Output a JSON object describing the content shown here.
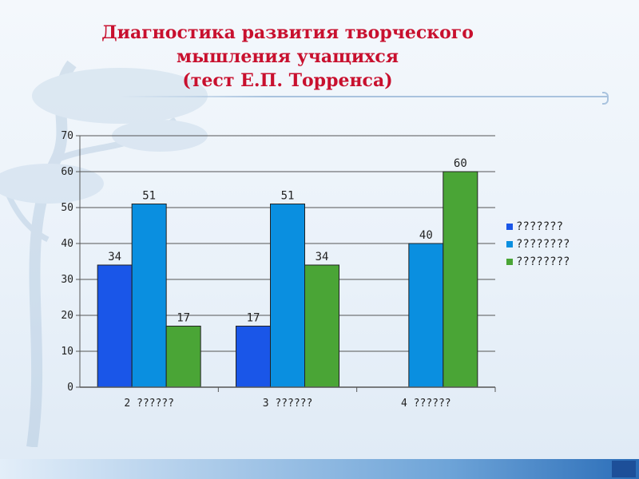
{
  "title": {
    "line1": "Диагностика развития творческого",
    "line2": "мышления учащихся",
    "line3": "(тест Е.П. Торренса)"
  },
  "chart_data": {
    "type": "bar",
    "categories": [
      "2 ??????",
      "3 ??????",
      "4 ??????"
    ],
    "series": [
      {
        "name": "???????",
        "color": "#1a56e8",
        "values": [
          34,
          17,
          null
        ]
      },
      {
        "name": "????????",
        "color": "#0a8fe0",
        "values": [
          51,
          51,
          40
        ]
      },
      {
        "name": "????????",
        "color": "#4aa536",
        "values": [
          17,
          34,
          60
        ]
      }
    ],
    "ylim": [
      0,
      70
    ],
    "yticks": [
      0,
      10,
      20,
      30,
      40,
      50,
      60,
      70
    ],
    "grid": true,
    "legend": "right"
  }
}
